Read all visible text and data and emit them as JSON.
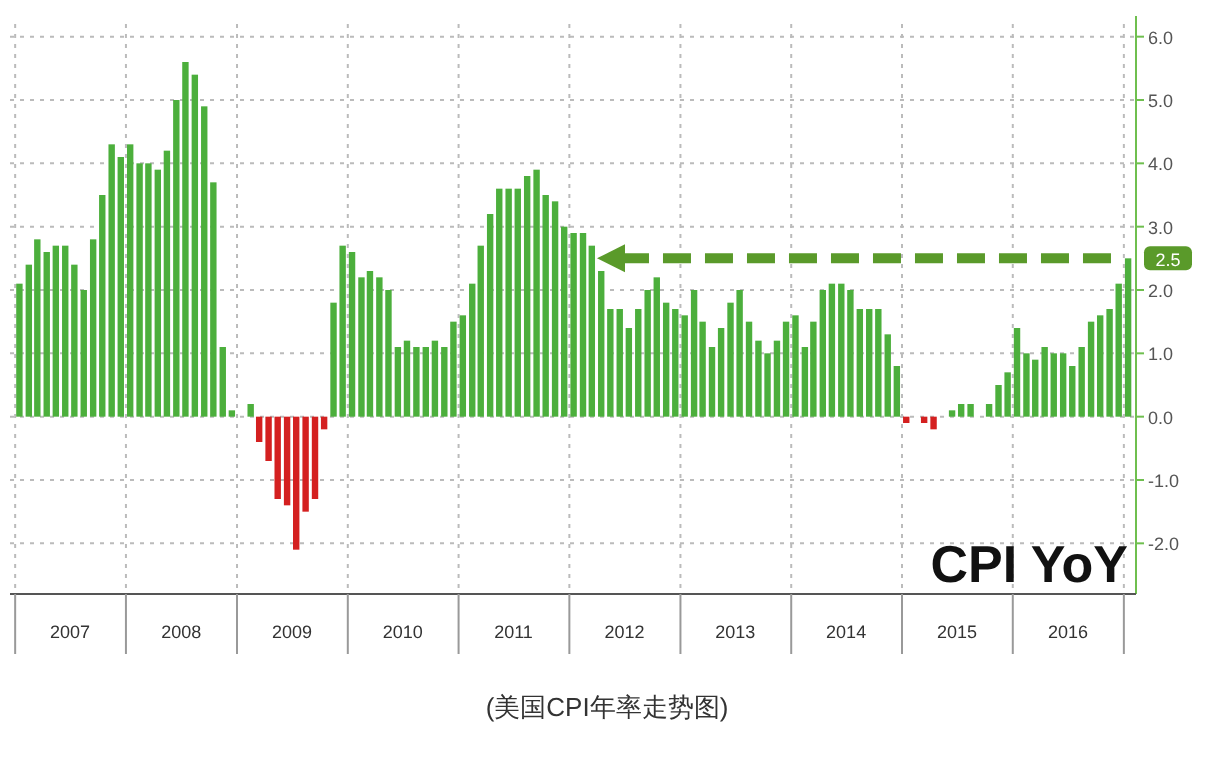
{
  "chart_data": {
    "type": "bar",
    "title": "CPI YoY",
    "annotations": [
      "(美国CPI年率走势图)"
    ],
    "x": [
      "2007-01",
      "2007-02",
      "2007-03",
      "2007-04",
      "2007-05",
      "2007-06",
      "2007-07",
      "2007-08",
      "2007-09",
      "2007-10",
      "2007-11",
      "2007-12",
      "2008-01",
      "2008-02",
      "2008-03",
      "2008-04",
      "2008-05",
      "2008-06",
      "2008-07",
      "2008-08",
      "2008-09",
      "2008-10",
      "2008-11",
      "2008-12",
      "2009-01",
      "2009-02",
      "2009-03",
      "2009-04",
      "2009-05",
      "2009-06",
      "2009-07",
      "2009-08",
      "2009-09",
      "2009-10",
      "2009-11",
      "2009-12",
      "2010-01",
      "2010-02",
      "2010-03",
      "2010-04",
      "2010-05",
      "2010-06",
      "2010-07",
      "2010-08",
      "2010-09",
      "2010-10",
      "2010-11",
      "2010-12",
      "2011-01",
      "2011-02",
      "2011-03",
      "2011-04",
      "2011-05",
      "2011-06",
      "2011-07",
      "2011-08",
      "2011-09",
      "2011-10",
      "2011-11",
      "2011-12",
      "2012-01",
      "2012-02",
      "2012-03",
      "2012-04",
      "2012-05",
      "2012-06",
      "2012-07",
      "2012-08",
      "2012-09",
      "2012-10",
      "2012-11",
      "2012-12",
      "2013-01",
      "2013-02",
      "2013-03",
      "2013-04",
      "2013-05",
      "2013-06",
      "2013-07",
      "2013-08",
      "2013-09",
      "2013-10",
      "2013-11",
      "2013-12",
      "2014-01",
      "2014-02",
      "2014-03",
      "2014-04",
      "2014-05",
      "2014-06",
      "2014-07",
      "2014-08",
      "2014-09",
      "2014-10",
      "2014-11",
      "2014-12",
      "2015-01",
      "2015-02",
      "2015-03",
      "2015-04",
      "2015-05",
      "2015-06",
      "2015-07",
      "2015-08",
      "2015-09",
      "2015-10",
      "2015-11",
      "2015-12",
      "2016-01",
      "2016-02",
      "2016-03",
      "2016-04",
      "2016-05",
      "2016-06",
      "2016-07",
      "2016-08",
      "2016-09",
      "2016-10",
      "2016-11",
      "2016-12",
      "2017-01"
    ],
    "values": [
      2.1,
      2.4,
      2.8,
      2.6,
      2.7,
      2.7,
      2.4,
      2.0,
      2.8,
      3.5,
      4.3,
      4.1,
      4.3,
      4.0,
      4.0,
      3.9,
      4.2,
      5.0,
      5.6,
      5.4,
      4.9,
      3.7,
      1.1,
      0.1,
      0.0,
      0.2,
      -0.4,
      -0.7,
      -1.3,
      -1.4,
      -2.1,
      -1.5,
      -1.3,
      -0.2,
      1.8,
      2.7,
      2.6,
      2.2,
      2.3,
      2.2,
      2.0,
      1.1,
      1.2,
      1.1,
      1.1,
      1.2,
      1.1,
      1.5,
      1.6,
      2.1,
      2.7,
      3.2,
      3.6,
      3.6,
      3.6,
      3.8,
      3.9,
      3.5,
      3.4,
      3.0,
      2.9,
      2.9,
      2.7,
      2.3,
      1.7,
      1.7,
      1.4,
      1.7,
      2.0,
      2.2,
      1.8,
      1.7,
      1.6,
      2.0,
      1.5,
      1.1,
      1.4,
      1.8,
      2.0,
      1.5,
      1.2,
      1.0,
      1.2,
      1.5,
      1.6,
      1.1,
      1.5,
      2.0,
      2.1,
      2.1,
      2.0,
      1.7,
      1.7,
      1.7,
      1.3,
      0.8,
      -0.1,
      0.0,
      -0.1,
      -0.2,
      0.0,
      0.1,
      0.2,
      0.2,
      0.0,
      0.2,
      0.5,
      0.7,
      1.4,
      1.0,
      0.9,
      1.1,
      1.0,
      1.0,
      0.8,
      1.1,
      1.5,
      1.6,
      1.7,
      2.1,
      2.5
    ],
    "colors": [
      "#4caf3c",
      "#4caf3c",
      "#4caf3c",
      "#4caf3c",
      "#4caf3c",
      "#4caf3c",
      "#4caf3c",
      "#4caf3c",
      "#4caf3c",
      "#4caf3c",
      "#4caf3c",
      "#4caf3c",
      "#4caf3c",
      "#4caf3c",
      "#4caf3c",
      "#4caf3c",
      "#4caf3c",
      "#4caf3c",
      "#4caf3c",
      "#4caf3c",
      "#4caf3c",
      "#4caf3c",
      "#4caf3c",
      "#4caf3c",
      "#4caf3c",
      "#4caf3c",
      "#d42020",
      "#d42020",
      "#d42020",
      "#d42020",
      "#d42020",
      "#d42020",
      "#d42020",
      "#d42020",
      "#4caf3c",
      "#4caf3c",
      "#4caf3c",
      "#4caf3c",
      "#4caf3c",
      "#4caf3c",
      "#4caf3c",
      "#4caf3c",
      "#4caf3c",
      "#4caf3c",
      "#4caf3c",
      "#4caf3c",
      "#4caf3c",
      "#4caf3c",
      "#4caf3c",
      "#4caf3c",
      "#4caf3c",
      "#4caf3c",
      "#4caf3c",
      "#4caf3c",
      "#4caf3c",
      "#4caf3c",
      "#4caf3c",
      "#4caf3c",
      "#4caf3c",
      "#4caf3c",
      "#4caf3c",
      "#4caf3c",
      "#4caf3c",
      "#4caf3c",
      "#4caf3c",
      "#4caf3c",
      "#4caf3c",
      "#4caf3c",
      "#4caf3c",
      "#4caf3c",
      "#4caf3c",
      "#4caf3c",
      "#4caf3c",
      "#4caf3c",
      "#4caf3c",
      "#4caf3c",
      "#4caf3c",
      "#4caf3c",
      "#4caf3c",
      "#4caf3c",
      "#4caf3c",
      "#4caf3c",
      "#4caf3c",
      "#4caf3c",
      "#4caf3c",
      "#4caf3c",
      "#4caf3c",
      "#4caf3c",
      "#4caf3c",
      "#4caf3c",
      "#4caf3c",
      "#4caf3c",
      "#4caf3c",
      "#4caf3c",
      "#4caf3c",
      "#4caf3c",
      "#d42020",
      "#4caf3c",
      "#d42020",
      "#d42020",
      "#4caf3c",
      "#4caf3c",
      "#4caf3c",
      "#4caf3c",
      "#4caf3c",
      "#4caf3c",
      "#4caf3c",
      "#4caf3c",
      "#4caf3c",
      "#4caf3c",
      "#4caf3c",
      "#4caf3c",
      "#4caf3c",
      "#4caf3c",
      "#4caf3c",
      "#4caf3c",
      "#4caf3c",
      "#4caf3c",
      "#4caf3c",
      "#4caf3c",
      "#4caf3c"
    ],
    "xlim": [
      "2006-12-15",
      "2017-02-10"
    ],
    "xticks": [
      {
        "value": "2007-01",
        "label": null
      },
      {
        "value": "2007-07",
        "label": "2007"
      },
      {
        "value": "2008-01",
        "label": null
      },
      {
        "value": "2008-07",
        "label": "2008"
      },
      {
        "value": "2009-01",
        "label": null
      },
      {
        "value": "2009-07",
        "label": "2009"
      },
      {
        "value": "2010-01",
        "label": null
      },
      {
        "value": "2010-07",
        "label": "2010"
      },
      {
        "value": "2011-01",
        "label": null
      },
      {
        "value": "2011-07",
        "label": "2011"
      },
      {
        "value": "2012-01",
        "label": null
      },
      {
        "value": "2012-07",
        "label": "2012"
      },
      {
        "value": "2013-01",
        "label": null
      },
      {
        "value": "2013-07",
        "label": "2013"
      },
      {
        "value": "2014-01",
        "label": null
      },
      {
        "value": "2014-07",
        "label": "2014"
      },
      {
        "value": "2015-01",
        "label": null
      },
      {
        "value": "2015-07",
        "label": "2015"
      },
      {
        "value": "2016-01",
        "label": null
      },
      {
        "value": "2016-07",
        "label": "2016"
      },
      {
        "value": "2017-01",
        "label": null
      }
    ],
    "ylim": [
      -2.8,
      6.2
    ],
    "yticks": [
      {
        "value": -2,
        "label": "-2.0"
      },
      {
        "value": -1,
        "label": "-1.0"
      },
      {
        "value": 0,
        "label": "0.0"
      },
      {
        "value": 1,
        "label": "1.0"
      },
      {
        "value": 2,
        "label": "2.0"
      },
      {
        "value": 3,
        "label": "3.0"
      },
      {
        "value": 4,
        "label": "4.0"
      },
      {
        "value": 5,
        "label": "5.0"
      },
      {
        "value": 6,
        "label": "6.0"
      }
    ],
    "ref_lines": [
      {
        "axis": "y",
        "value": 2.5,
        "label": "2.5",
        "color": "#5a9a2a",
        "line_style": "dashed"
      }
    ],
    "grid": true
  }
}
